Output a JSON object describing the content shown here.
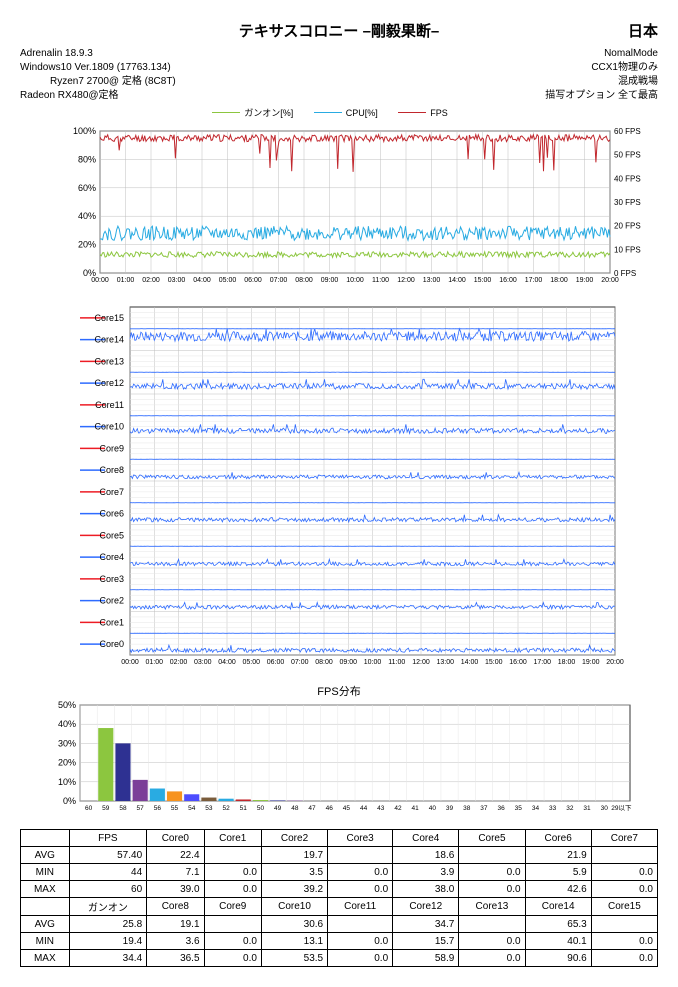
{
  "header": {
    "title": "テキサスコロニー –剛毅果断–",
    "country": "日本",
    "left_lines": [
      "Adrenalin  18.9.3",
      "Windows10  Ver.1809  (17763.134)",
      "Ryzen7 2700@ 定格        (8C8T)",
      "Radeon RX480@定格"
    ],
    "right_lines": [
      "NomalMode",
      "CCX1物理のみ",
      "混成戦場",
      "描写オプション  全て最高"
    ]
  },
  "colors": {
    "gunon": "#8cc63f",
    "cpu": "#29abe2",
    "fps": "#c1272d",
    "core_red": "#ed1c24",
    "core_blue": "#2e6bff",
    "bars": [
      "#c1272d",
      "#8cc63f",
      "#2e3192",
      "#7b3f98",
      "#29abe2",
      "#f7931e",
      "#4d4dff",
      "#7a5c3b",
      "#29abe2"
    ],
    "grid": "#bfbfbf",
    "grid_inner": "#e6e6e6",
    "axis": "#000000",
    "bg": "#ffffff"
  },
  "chart1": {
    "legend": [
      "ガンオン[%]",
      "CPU[%]",
      "FPS"
    ],
    "y_left": {
      "min": 0,
      "max": 100,
      "step": 20,
      "unit": "%"
    },
    "y_right": {
      "min": 0,
      "max": 60,
      "step": 10,
      "unit": " FPS"
    },
    "x_ticks": [
      "00:00",
      "01:00",
      "02:00",
      "03:00",
      "04:00",
      "05:00",
      "06:00",
      "07:00",
      "08:00",
      "09:00",
      "10:00",
      "11:00",
      "12:00",
      "13:00",
      "14:00",
      "15:00",
      "16:00",
      "17:00",
      "18:00",
      "19:00",
      "20:00"
    ]
  },
  "chart2": {
    "cores": [
      "Core15",
      "Core14",
      "Core13",
      "Core12",
      "Core11",
      "Core10",
      "Core9",
      "Core8",
      "Core7",
      "Core6",
      "Core5",
      "Core4",
      "Core3",
      "Core2",
      "Core1",
      "Core0"
    ],
    "x_ticks": [
      "00:00",
      "01:00",
      "02:00",
      "03:00",
      "04:00",
      "05:00",
      "06:00",
      "07:00",
      "08:00",
      "09:00",
      "10:00",
      "11:00",
      "12:00",
      "13:00",
      "14:00",
      "15:00",
      "16:00",
      "17:00",
      "18:00",
      "19:00",
      "20:00"
    ]
  },
  "chart3": {
    "title": "FPS分布",
    "y": {
      "min": 0,
      "max": 50,
      "step": 10,
      "unit": "%"
    },
    "categories": [
      "60",
      "59",
      "58",
      "57",
      "56",
      "55",
      "54",
      "53",
      "52",
      "51",
      "50",
      "49",
      "48",
      "47",
      "46",
      "45",
      "44",
      "43",
      "42",
      "41",
      "40",
      "39",
      "38",
      "37",
      "36",
      "35",
      "34",
      "33",
      "32",
      "31",
      "30",
      "29以下"
    ],
    "values": [
      0,
      38,
      30,
      11,
      6.5,
      5,
      3.5,
      1.8,
      1.2,
      0.8,
      0.5,
      0.3,
      0.2,
      0,
      0,
      0,
      0,
      0,
      0,
      0,
      0,
      0,
      0,
      0,
      0,
      0,
      0,
      0,
      0,
      0,
      0,
      0
    ]
  },
  "table": {
    "rows1_header": [
      "",
      "FPS",
      "Core0",
      "Core1",
      "Core2",
      "Core3",
      "Core4",
      "Core5",
      "Core6",
      "Core7"
    ],
    "rows1": [
      [
        "AVG",
        "57.40",
        "22.4",
        "",
        "19.7",
        "",
        "18.6",
        "",
        "21.9",
        ""
      ],
      [
        "MIN",
        "44",
        "7.1",
        "0.0",
        "3.5",
        "0.0",
        "3.9",
        "0.0",
        "5.9",
        "0.0"
      ],
      [
        "MAX",
        "60",
        "39.0",
        "0.0",
        "39.2",
        "0.0",
        "38.0",
        "0.0",
        "42.6",
        "0.0"
      ]
    ],
    "rows2_header": [
      "",
      "ガンオン",
      "Core8",
      "Core9",
      "Core10",
      "Core11",
      "Core12",
      "Core13",
      "Core14",
      "Core15"
    ],
    "rows2": [
      [
        "AVG",
        "25.8",
        "19.1",
        "",
        "30.6",
        "",
        "34.7",
        "",
        "65.3",
        ""
      ],
      [
        "MIN",
        "19.4",
        "3.6",
        "0.0",
        "13.1",
        "0.0",
        "15.7",
        "0.0",
        "40.1",
        "0.0"
      ],
      [
        "MAX",
        "34.4",
        "36.5",
        "0.0",
        "53.5",
        "0.0",
        "58.9",
        "0.0",
        "90.6",
        "0.0"
      ]
    ]
  }
}
